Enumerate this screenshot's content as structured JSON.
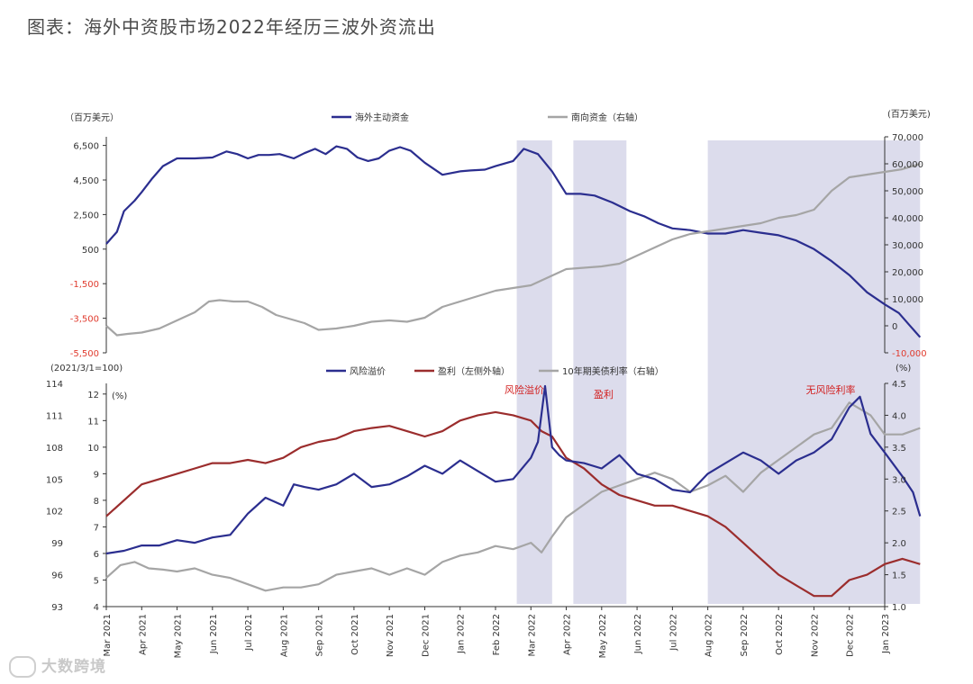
{
  "title": "图表：海外中资股市场2022年经历三波外资流出",
  "watermark": "大数跨境",
  "colors": {
    "navy": "#2b2e8f",
    "gray": "#a5a5a5",
    "darkred": "#9b2d2d",
    "shade": "#dcdcec",
    "red_text": "#e03b2e"
  },
  "chart_data": [
    {
      "type": "line",
      "title": "",
      "left_unit": "（百万美元）",
      "right_unit": "(百万美元)",
      "y_left": {
        "ticks": [
          "6,500",
          "4,500",
          "2,500",
          "500",
          "-1,500",
          "-3,500",
          "-5,500"
        ],
        "values": [
          6500,
          4500,
          2500,
          500,
          -1500,
          -3500,
          -5500
        ],
        "range": [
          -5500,
          7000
        ]
      },
      "y_right": {
        "ticks": [
          "70,000",
          "60,000",
          "50,000",
          "40,000",
          "30,000",
          "20,000",
          "10,000",
          "0",
          "-10,000"
        ],
        "values": [
          70000,
          60000,
          50000,
          40000,
          30000,
          20000,
          10000,
          0,
          -10000
        ],
        "range": [
          -10000,
          70000
        ]
      },
      "series": [
        {
          "name": "海外主动资金",
          "axis": "left",
          "color": "#2b2e8f",
          "x": [
            0,
            0.3,
            0.5,
            0.8,
            1.0,
            1.3,
            1.6,
            2.0,
            2.5,
            3.0,
            3.4,
            3.7,
            4.0,
            4.3,
            4.6,
            4.9,
            5.3,
            5.6,
            5.9,
            6.2,
            6.5,
            6.8,
            7.1,
            7.4,
            7.7,
            8.0,
            8.3,
            8.6,
            9.0,
            9.5,
            10.0,
            10.3,
            10.7,
            11.0,
            11.5,
            11.8,
            12.2,
            12.6,
            13.0,
            13.4,
            13.8,
            14.3,
            14.8,
            15.2,
            15.6,
            16.0,
            16.5,
            17.0,
            17.5,
            18.0,
            18.5,
            19.0,
            19.5,
            20.0,
            20.5,
            21.0,
            21.5,
            22.0,
            22.4,
            22.7,
            23.0
          ],
          "y": [
            800,
            1500,
            2700,
            3300,
            3800,
            4600,
            5300,
            5750,
            5750,
            5800,
            6150,
            6000,
            5750,
            5950,
            5950,
            6000,
            5750,
            6050,
            6300,
            6000,
            6450,
            6300,
            5800,
            5600,
            5750,
            6200,
            6400,
            6200,
            5500,
            4800,
            5000,
            5050,
            5100,
            5300,
            5600,
            6300,
            6000,
            5000,
            3700,
            3700,
            3600,
            3200,
            2700,
            2400,
            2000,
            1700,
            1600,
            1400,
            1400,
            1600,
            1450,
            1300,
            1000,
            500,
            -200,
            -1000,
            -2000,
            -2700,
            -3200,
            -3900,
            -4600
          ]
        },
        {
          "name": "南向资金（右轴）",
          "axis": "right",
          "color": "#a5a5a5",
          "x": [
            0,
            0.3,
            0.6,
            1.0,
            1.5,
            2.0,
            2.5,
            2.9,
            3.2,
            3.6,
            4.0,
            4.4,
            4.8,
            5.2,
            5.6,
            6.0,
            6.5,
            7.0,
            7.5,
            8.0,
            8.5,
            9.0,
            9.5,
            10.0,
            10.5,
            11.0,
            11.5,
            12.0,
            12.5,
            13.0,
            13.5,
            14.0,
            14.5,
            15.0,
            15.5,
            16.0,
            16.5,
            17.0,
            17.5,
            18.0,
            18.5,
            19.0,
            19.5,
            20.0,
            20.5,
            21.0,
            21.5,
            22.0,
            22.5,
            23.0
          ],
          "y": [
            0,
            -3500,
            -3000,
            -2500,
            -1000,
            2000,
            5000,
            9000,
            9500,
            9000,
            9000,
            7000,
            4000,
            2500,
            1000,
            -1500,
            -1000,
            0,
            1500,
            2000,
            1500,
            3000,
            7000,
            9000,
            11000,
            13000,
            14000,
            15000,
            18000,
            21000,
            21500,
            22000,
            23000,
            26000,
            29000,
            32000,
            34000,
            35000,
            36000,
            37000,
            38000,
            40000,
            41000,
            43000,
            50000,
            55000,
            56000,
            57000,
            58000,
            60000
          ]
        }
      ]
    },
    {
      "type": "line",
      "title": "",
      "left_unit": "(2021/3/1=100)",
      "left_unit2": "(%)",
      "right_unit": "(%)",
      "y_left": {
        "ticks": [
          "114",
          "111",
          "108",
          "105",
          "102",
          "99",
          "96",
          "93"
        ],
        "values": [
          114,
          111,
          108,
          105,
          102,
          99,
          96,
          93
        ],
        "range": [
          93,
          114
        ]
      },
      "y_left2": {
        "ticks": [
          "12",
          "11",
          "10",
          "9",
          "8",
          "7",
          "6",
          "5",
          "4"
        ],
        "values": [
          12,
          11,
          10,
          9,
          8,
          7,
          6,
          5,
          4
        ],
        "range": [
          4,
          12.4
        ]
      },
      "y_right": {
        "ticks": [
          "4.5",
          "4.0",
          "3.5",
          "3.0",
          "2.5",
          "2.0",
          "1.5",
          "1.0"
        ],
        "values": [
          4.5,
          4.0,
          3.5,
          3.0,
          2.5,
          2.0,
          1.5,
          1.0
        ],
        "range": [
          1.0,
          4.5
        ]
      },
      "series": [
        {
          "name": "风险溢价",
          "axis": "left",
          "color": "#2b2e8f",
          "x": [
            0,
            0.5,
            1.0,
            1.5,
            2.0,
            2.5,
            3.0,
            3.5,
            4.0,
            4.5,
            5.0,
            5.3,
            5.6,
            6.0,
            6.5,
            7.0,
            7.5,
            8.0,
            8.5,
            9.0,
            9.5,
            10.0,
            10.5,
            11.0,
            11.5,
            12.0,
            12.2,
            12.4,
            12.6,
            12.8,
            13.0,
            13.5,
            14.0,
            14.5,
            15.0,
            15.5,
            16.0,
            16.5,
            17.0,
            17.5,
            18.0,
            18.5,
            19.0,
            19.5,
            20.0,
            20.5,
            21.0,
            21.3,
            21.6,
            22.0,
            22.5,
            22.8,
            23.0
          ],
          "y": [
            6.0,
            6.1,
            6.3,
            6.3,
            6.5,
            6.4,
            6.6,
            6.7,
            7.5,
            8.1,
            7.8,
            8.6,
            8.5,
            8.4,
            8.6,
            9.0,
            8.5,
            8.6,
            8.9,
            9.3,
            9.0,
            9.5,
            9.1,
            8.7,
            8.8,
            9.6,
            10.2,
            12.3,
            10.0,
            9.7,
            9.5,
            9.4,
            9.2,
            9.7,
            9.0,
            8.8,
            8.4,
            8.3,
            9.0,
            9.4,
            9.8,
            9.5,
            9.0,
            9.5,
            9.8,
            10.3,
            11.5,
            11.9,
            10.5,
            9.8,
            8.9,
            8.3,
            7.4
          ]
        },
        {
          "name": "盈利（左侧外轴）",
          "axis": "left2",
          "color": "#9b2d2d",
          "x": [
            0,
            0.5,
            1.0,
            1.5,
            2.0,
            2.5,
            3.0,
            3.5,
            4.0,
            4.5,
            5.0,
            5.5,
            6.0,
            6.5,
            7.0,
            7.5,
            8.0,
            8.5,
            9.0,
            9.5,
            10.0,
            10.5,
            11.0,
            11.5,
            12.0,
            12.3,
            12.6,
            13.0,
            13.5,
            14.0,
            14.5,
            15.0,
            15.5,
            16.0,
            16.5,
            17.0,
            17.5,
            18.0,
            18.5,
            19.0,
            19.5,
            20.0,
            20.5,
            21.0,
            21.5,
            22.0,
            22.5,
            23.0
          ],
          "y": [
            101.5,
            103.0,
            104.5,
            105.0,
            105.5,
            106.0,
            106.5,
            106.5,
            106.8,
            106.5,
            107.0,
            108.0,
            108.5,
            108.8,
            109.5,
            109.8,
            110.0,
            109.5,
            109.0,
            109.5,
            110.5,
            111.0,
            111.3,
            111.0,
            110.5,
            109.5,
            109.0,
            107.0,
            106.0,
            104.5,
            103.5,
            103.0,
            102.5,
            102.5,
            102.0,
            101.5,
            100.5,
            99.0,
            97.5,
            96.0,
            95.0,
            94.0,
            94.0,
            95.5,
            96.0,
            97.0,
            97.5,
            97.0
          ]
        },
        {
          "name": "10年期美债利率（右轴）",
          "axis": "right",
          "color": "#a5a5a5",
          "x": [
            0,
            0.4,
            0.8,
            1.2,
            1.6,
            2.0,
            2.5,
            3.0,
            3.5,
            4.0,
            4.5,
            5.0,
            5.5,
            6.0,
            6.5,
            7.0,
            7.5,
            8.0,
            8.5,
            9.0,
            9.5,
            10.0,
            10.5,
            11.0,
            11.5,
            12.0,
            12.3,
            12.6,
            13.0,
            13.5,
            14.0,
            14.5,
            15.0,
            15.5,
            16.0,
            16.5,
            17.0,
            17.5,
            18.0,
            18.5,
            19.0,
            19.5,
            20.0,
            20.5,
            21.0,
            21.3,
            21.6,
            22.0,
            22.5,
            23.0
          ],
          "y": [
            1.45,
            1.65,
            1.7,
            1.6,
            1.58,
            1.55,
            1.6,
            1.5,
            1.45,
            1.35,
            1.25,
            1.3,
            1.3,
            1.35,
            1.5,
            1.55,
            1.6,
            1.5,
            1.6,
            1.5,
            1.7,
            1.8,
            1.85,
            1.95,
            1.9,
            2.0,
            1.85,
            2.1,
            2.4,
            2.6,
            2.8,
            2.9,
            3.0,
            3.1,
            3.0,
            2.8,
            2.9,
            3.05,
            2.8,
            3.1,
            3.3,
            3.5,
            3.7,
            3.8,
            4.2,
            4.1,
            4.0,
            3.7,
            3.7,
            3.8
          ]
        }
      ],
      "annotations": [
        "风险溢价",
        "盈利",
        "无风险利率"
      ]
    }
  ],
  "shaded_periods": [
    [
      11.6,
      12.6
    ],
    [
      13.2,
      14.7
    ],
    [
      17.0,
      23.0
    ]
  ],
  "x_categories": [
    "Mar 2021",
    "Apr 2021",
    "May 2021",
    "Jun 2021",
    "Jul 2021",
    "Aug 2021",
    "Sep 2021",
    "Oct 2021",
    "Nov 2021",
    "Dec 2021",
    "Jan 2022",
    "Feb 2022",
    "Mar 2022",
    "Apr 2022",
    "May 2022",
    "Jun 2022",
    "Jul 2022",
    "Aug 2022",
    "Sep 2022",
    "Oct 2022",
    "Nov 2022",
    "Dec 2022",
    "Jan 2023"
  ]
}
